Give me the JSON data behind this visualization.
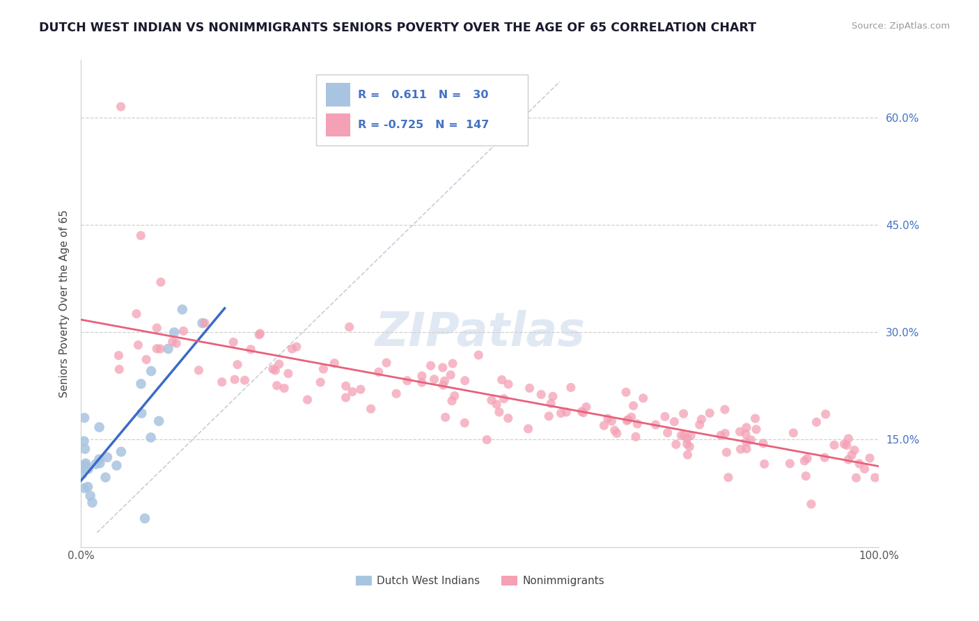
{
  "title": "DUTCH WEST INDIAN VS NONIMMIGRANTS SENIORS POVERTY OVER THE AGE OF 65 CORRELATION CHART",
  "source_text": "Source: ZipAtlas.com",
  "ylabel": "Seniors Poverty Over the Age of 65",
  "blue_R": 0.611,
  "blue_N": 30,
  "pink_R": -0.725,
  "pink_N": 147,
  "blue_color": "#a8c4e0",
  "pink_color": "#f4a0b5",
  "blue_line_color": "#3a6bc4",
  "pink_line_color": "#e8607a",
  "legend_label_blue": "Dutch West Indians",
  "legend_label_pink": "Nonimmigrants",
  "watermark": "ZIPatlas",
  "xlim": [
    0,
    1.0
  ],
  "ylim": [
    0.0,
    0.68
  ],
  "yticks": [
    0.15,
    0.3,
    0.45,
    0.6
  ],
  "xticks": [
    0.0,
    0.25,
    0.5,
    0.75,
    1.0
  ],
  "xtick_labels": [
    "0.0%",
    "",
    "",
    "",
    "100.0%"
  ],
  "blue_seed": 42,
  "pink_seed": 7,
  "bg_color": "#ffffff",
  "grid_color": "#d0d0d0",
  "tick_color": "#555555",
  "right_axis_color": "#4472c4",
  "title_color": "#1a1a2e",
  "source_color": "#999999",
  "legend_border_color": "#cccccc"
}
